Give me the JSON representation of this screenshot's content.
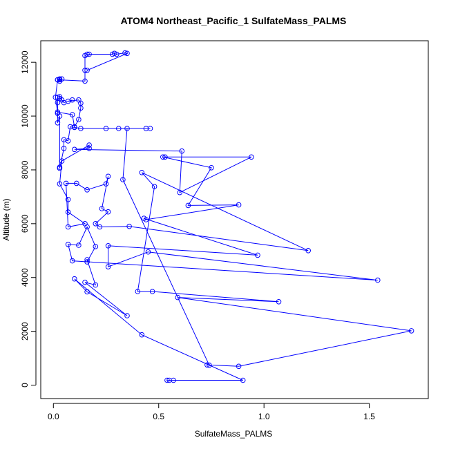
{
  "chart_data": {
    "type": "line",
    "title": "ATOM4 Northeast_Pacific_1 SulfateMass_PALMS",
    "xlabel": "SulfateMass_PALMS",
    "ylabel": "Altitude (m)",
    "xlim": [
      -0.06,
      1.78
    ],
    "ylim": [
      -500,
      12800
    ],
    "x_ticks": [
      0.0,
      0.5,
      1.0,
      1.5
    ],
    "x_tick_labels": [
      "0.0",
      "0.5",
      "1.0",
      "1.5"
    ],
    "y_ticks": [
      0,
      2000,
      4000,
      6000,
      8000,
      10000,
      12000
    ],
    "y_tick_labels": [
      "0",
      "2000",
      "4000",
      "6000",
      "8000",
      "10000",
      "12000"
    ],
    "grid": false,
    "series": [
      {
        "color": "#0000ff",
        "marker": "open-circle",
        "points": [
          [
            0.55,
            180
          ],
          [
            0.54,
            180
          ],
          [
            0.57,
            180
          ],
          [
            0.9,
            180
          ],
          [
            0.42,
            1870
          ],
          [
            0.1,
            3950
          ],
          [
            0.16,
            3470
          ],
          [
            0.35,
            2580
          ],
          [
            0.15,
            3820
          ],
          [
            0.2,
            3720
          ],
          [
            0.16,
            4660
          ],
          [
            0.16,
            4580
          ],
          [
            0.2,
            5150
          ],
          [
            0.16,
            5880
          ],
          [
            0.12,
            5200
          ],
          [
            0.07,
            5230
          ],
          [
            0.09,
            4620
          ],
          [
            1.54,
            3900
          ],
          [
            0.45,
            4950
          ],
          [
            0.26,
            4400
          ],
          [
            0.26,
            5180
          ],
          [
            0.97,
            4830
          ],
          [
            0.43,
            6200
          ],
          [
            0.44,
            6150
          ],
          [
            0.88,
            6700
          ],
          [
            0.64,
            6680
          ],
          [
            0.75,
            8080
          ],
          [
            0.52,
            8480
          ],
          [
            0.53,
            8480
          ],
          [
            0.94,
            8480
          ],
          [
            0.6,
            7160
          ],
          [
            0.61,
            8700
          ],
          [
            0.1,
            8760
          ],
          [
            0.17,
            8800
          ],
          [
            0.17,
            8920
          ],
          [
            0.04,
            8330
          ],
          [
            0.03,
            7480
          ],
          [
            0.07,
            6900
          ],
          [
            0.07,
            6430
          ],
          [
            0.15,
            6000
          ],
          [
            0.07,
            5880
          ],
          [
            0.06,
            7500
          ],
          [
            0.11,
            7500
          ],
          [
            0.16,
            7260
          ],
          [
            0.25,
            7480
          ],
          [
            0.26,
            7760
          ],
          [
            0.23,
            6560
          ],
          [
            0.26,
            6440
          ],
          [
            0.2,
            6000
          ],
          [
            0.22,
            5880
          ],
          [
            0.36,
            5900
          ],
          [
            1.21,
            5000
          ],
          [
            0.42,
            7900
          ],
          [
            0.48,
            7380
          ],
          [
            0.4,
            3480
          ],
          [
            0.47,
            3480
          ],
          [
            1.07,
            3100
          ],
          [
            0.59,
            3260
          ],
          [
            1.7,
            2020
          ],
          [
            0.88,
            700
          ],
          [
            0.73,
            750
          ],
          [
            0.74,
            740
          ],
          [
            0.33,
            7640
          ],
          [
            0.35,
            9540
          ],
          [
            0.44,
            9540
          ],
          [
            0.46,
            9540
          ],
          [
            0.31,
            9540
          ],
          [
            0.25,
            9540
          ],
          [
            0.13,
            9540
          ],
          [
            0.1,
            9580
          ],
          [
            0.08,
            9600
          ],
          [
            0.07,
            9080
          ],
          [
            0.05,
            9120
          ],
          [
            0.05,
            8800
          ],
          [
            0.03,
            8060
          ],
          [
            0.03,
            8100
          ],
          [
            0.03,
            10000
          ],
          [
            0.02,
            9750
          ],
          [
            0.02,
            10100
          ],
          [
            0.02,
            10500
          ],
          [
            0.02,
            10700
          ],
          [
            0.03,
            10720
          ],
          [
            0.03,
            10650
          ],
          [
            0.04,
            10600
          ],
          [
            0.05,
            10500
          ],
          [
            0.09,
            10600
          ],
          [
            0.07,
            10550
          ],
          [
            0.12,
            10600
          ],
          [
            0.13,
            10480
          ],
          [
            0.13,
            10300
          ],
          [
            0.12,
            9870
          ],
          [
            0.1,
            9600
          ],
          [
            0.09,
            10050
          ],
          [
            0.02,
            10150
          ],
          [
            0.01,
            10700
          ],
          [
            0.02,
            11350
          ],
          [
            0.03,
            11350
          ],
          [
            0.04,
            11380
          ],
          [
            0.03,
            11380
          ],
          [
            0.03,
            11300
          ],
          [
            0.02,
            11350
          ],
          [
            0.15,
            11300
          ],
          [
            0.15,
            11700
          ],
          [
            0.15,
            12250
          ],
          [
            0.16,
            12300
          ],
          [
            0.17,
            12300
          ],
          [
            0.28,
            12300
          ],
          [
            0.29,
            12330
          ],
          [
            0.3,
            12300
          ],
          [
            0.34,
            12350
          ],
          [
            0.35,
            12330
          ],
          [
            0.16,
            11700
          ]
        ]
      }
    ]
  }
}
